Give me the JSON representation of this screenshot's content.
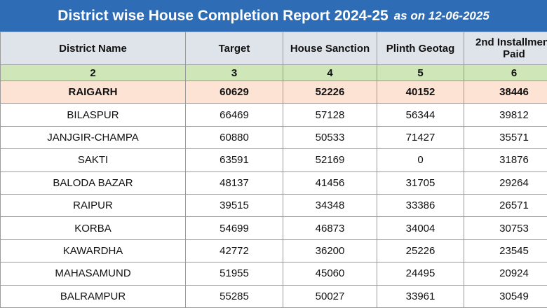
{
  "title": {
    "main": "District wise House Completion Report 2024-25",
    "date": "as on 12-06-2025"
  },
  "columns": [
    "District Name",
    "Target",
    "House Sanction",
    "Plinth Geotag",
    "2nd Installment Paid"
  ],
  "column_numbers": [
    "2",
    "3",
    "4",
    "5",
    "6"
  ],
  "rows": [
    {
      "district": "RAIGARH",
      "target": "60629",
      "sanction": "52226",
      "plinth": "40152",
      "installment": "38446"
    },
    {
      "district": "BILASPUR",
      "target": "66469",
      "sanction": "57128",
      "plinth": "56344",
      "installment": "39812"
    },
    {
      "district": "JANJGIR-CHAMPA",
      "target": "60880",
      "sanction": "50533",
      "plinth": "71427",
      "installment": "35571"
    },
    {
      "district": "SAKTI",
      "target": "63591",
      "sanction": "52169",
      "plinth": "0",
      "installment": "31876"
    },
    {
      "district": "BALODA BAZAR",
      "target": "48137",
      "sanction": "41456",
      "plinth": "31705",
      "installment": "29264"
    },
    {
      "district": "RAIPUR",
      "target": "39515",
      "sanction": "34348",
      "plinth": "33386",
      "installment": "26571"
    },
    {
      "district": "KORBA",
      "target": "54699",
      "sanction": "46873",
      "plinth": "34004",
      "installment": "30753"
    },
    {
      "district": "KAWARDHA",
      "target": "42772",
      "sanction": "36200",
      "plinth": "25226",
      "installment": "23545"
    },
    {
      "district": "MAHASAMUND",
      "target": "51955",
      "sanction": "45060",
      "plinth": "24495",
      "installment": "20924"
    },
    {
      "district": "BALRAMPUR",
      "target": "55285",
      "sanction": "50027",
      "plinth": "33961",
      "installment": "30549"
    }
  ]
}
